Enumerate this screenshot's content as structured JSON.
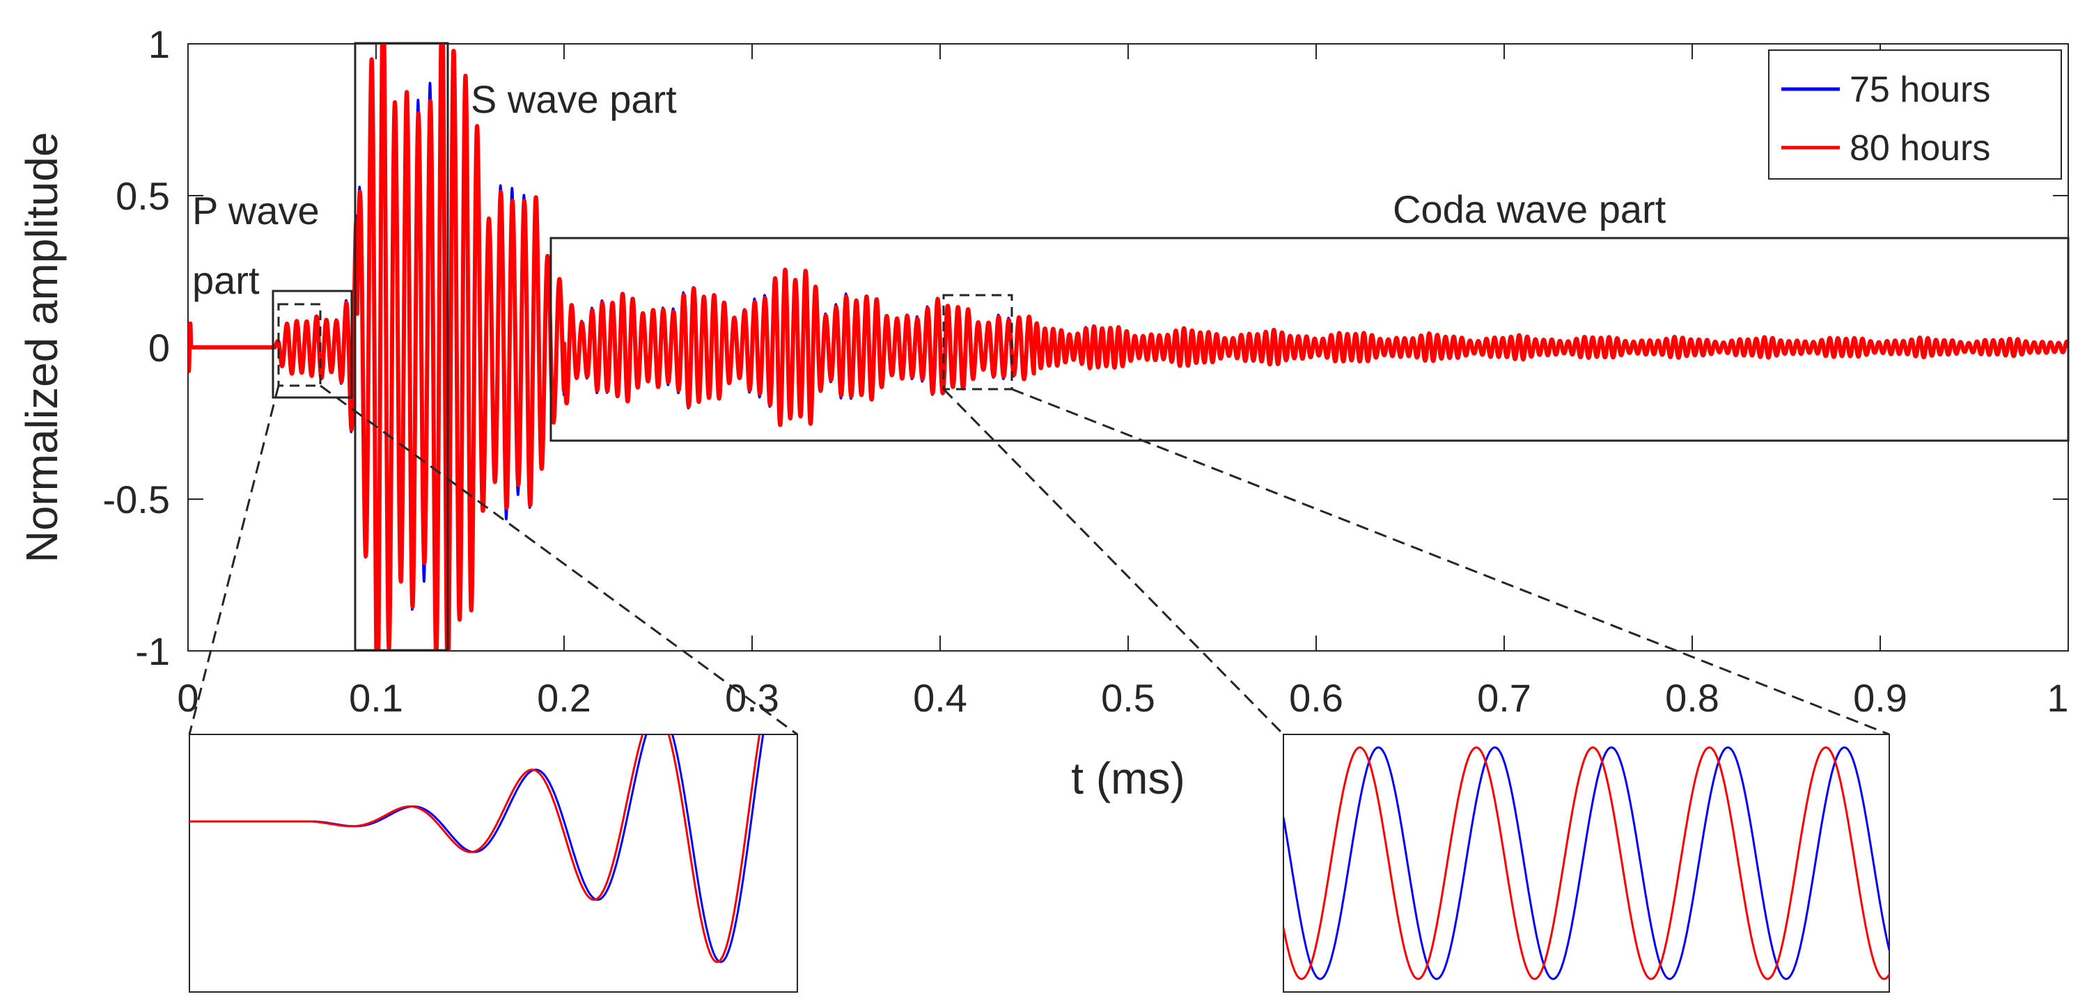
{
  "chart_data": {
    "type": "line",
    "title": "",
    "xlabel": "t (ms)",
    "ylabel": "Normalized amplitude",
    "xlim": [
      0,
      1
    ],
    "ylim": [
      -1,
      1
    ],
    "xticks": [
      "0",
      "0.1",
      "0.2",
      "0.3",
      "0.4",
      "0.5",
      "0.6",
      "0.7",
      "0.8",
      "0.9",
      "1"
    ],
    "yticks": [
      "1",
      "0.5",
      "0",
      "-0.5",
      "-1"
    ],
    "grid": false,
    "legend_position": "top-right",
    "series": [
      {
        "name": "75 hours",
        "color": "#0000ff"
      },
      {
        "name": "80 hours",
        "color": "#ff0000"
      }
    ],
    "envelope_keypoints": {
      "t_ms": [
        0.0,
        0.046,
        0.05,
        0.085,
        0.1,
        0.115,
        0.13,
        0.15,
        0.17,
        0.19,
        0.21,
        0.25,
        0.3,
        0.32,
        0.33,
        0.34,
        0.38,
        0.42,
        0.45,
        0.5,
        0.6,
        0.7,
        0.8,
        0.9,
        1.0
      ],
      "amplitude": [
        0.0,
        0.0,
        0.05,
        0.15,
        0.9,
        1.0,
        0.95,
        0.75,
        0.55,
        0.3,
        0.12,
        0.15,
        0.15,
        0.2,
        0.28,
        0.15,
        0.12,
        0.12,
        0.07,
        0.05,
        0.04,
        0.03,
        0.025,
        0.025,
        0.02
      ]
    },
    "annotations": [
      {
        "id": "p",
        "lines": [
          "P wave",
          "part"
        ],
        "t_range": [
          0.045,
          0.087
        ],
        "amp_range": [
          -0.13,
          0.17
        ]
      },
      {
        "id": "s",
        "lines": [
          "S wave part"
        ],
        "t_range": [
          0.089,
          0.138
        ],
        "amp_range": [
          -1,
          1
        ]
      },
      {
        "id": "coda",
        "lines": [
          "Coda wave part"
        ],
        "t_range": [
          0.193,
          1.0
        ],
        "amp_range": [
          -0.32,
          0.35
        ]
      }
    ],
    "zoom_windows": [
      {
        "id": "zoom-p",
        "t_range": [
          0.048,
          0.069
        ],
        "amp_range": [
          -0.13,
          0.13
        ]
      },
      {
        "id": "zoom-coda",
        "t_range": [
          0.402,
          0.437
        ],
        "amp_range": [
          -0.15,
          0.15
        ]
      }
    ]
  }
}
